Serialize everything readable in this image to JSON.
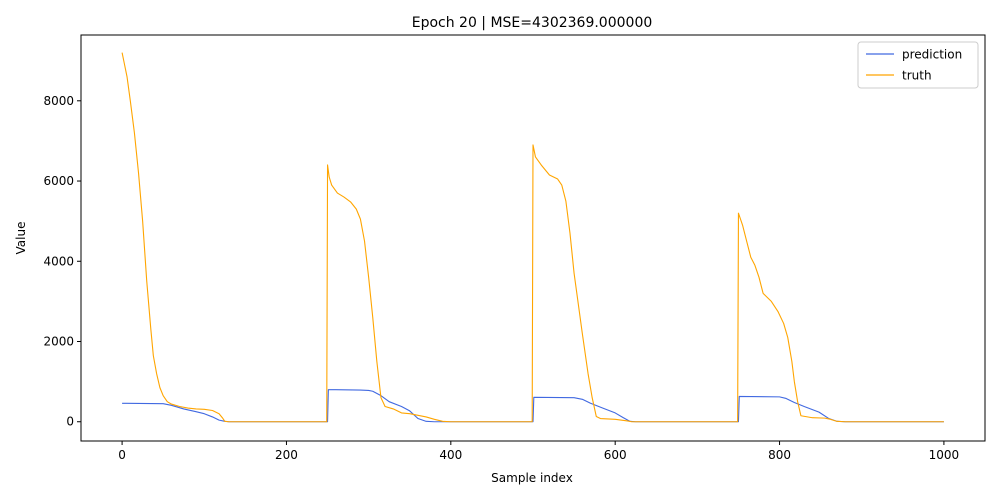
{
  "chart_data": {
    "type": "line",
    "title": "Epoch 20 | MSE=4302369.000000",
    "xlabel": "Sample index",
    "ylabel": "Value",
    "xlim": [
      -50,
      1050
    ],
    "ylim": [
      -480,
      9640
    ],
    "xticks": [
      0,
      200,
      400,
      600,
      800,
      1000
    ],
    "yticks": [
      0,
      2000,
      4000,
      6000,
      8000
    ],
    "grid": false,
    "legend_position": "upper-right",
    "series": [
      {
        "name": "prediction",
        "color": "#4169e1",
        "points": [
          [
            0,
            460
          ],
          [
            50,
            450
          ],
          [
            60,
            410
          ],
          [
            75,
            320
          ],
          [
            90,
            250
          ],
          [
            100,
            200
          ],
          [
            110,
            120
          ],
          [
            118,
            40
          ],
          [
            125,
            10
          ],
          [
            130,
            0
          ],
          [
            250,
            0
          ],
          [
            251,
            800
          ],
          [
            260,
            800
          ],
          [
            290,
            790
          ],
          [
            300,
            780
          ],
          [
            305,
            760
          ],
          [
            315,
            650
          ],
          [
            325,
            500
          ],
          [
            340,
            380
          ],
          [
            350,
            270
          ],
          [
            360,
            80
          ],
          [
            370,
            10
          ],
          [
            380,
            0
          ],
          [
            500,
            0
          ],
          [
            501,
            610
          ],
          [
            550,
            600
          ],
          [
            560,
            560
          ],
          [
            570,
            460
          ],
          [
            585,
            340
          ],
          [
            600,
            220
          ],
          [
            610,
            100
          ],
          [
            618,
            10
          ],
          [
            625,
            0
          ],
          [
            750,
            0
          ],
          [
            751,
            630
          ],
          [
            800,
            620
          ],
          [
            808,
            580
          ],
          [
            818,
            480
          ],
          [
            830,
            380
          ],
          [
            848,
            240
          ],
          [
            860,
            80
          ],
          [
            870,
            10
          ],
          [
            880,
            0
          ],
          [
            1000,
            0
          ]
        ]
      },
      {
        "name": "truth",
        "color": "#ffa500",
        "points": [
          [
            0,
            9200
          ],
          [
            3,
            8900
          ],
          [
            6,
            8600
          ],
          [
            10,
            8000
          ],
          [
            15,
            7200
          ],
          [
            20,
            6200
          ],
          [
            25,
            5000
          ],
          [
            30,
            3500
          ],
          [
            35,
            2300
          ],
          [
            38,
            1650
          ],
          [
            42,
            1200
          ],
          [
            46,
            850
          ],
          [
            50,
            650
          ],
          [
            55,
            500
          ],
          [
            60,
            440
          ],
          [
            70,
            380
          ],
          [
            80,
            340
          ],
          [
            90,
            320
          ],
          [
            100,
            310
          ],
          [
            110,
            280
          ],
          [
            118,
            200
          ],
          [
            122,
            100
          ],
          [
            125,
            10
          ],
          [
            130,
            0
          ],
          [
            249,
            0
          ],
          [
            250,
            6400
          ],
          [
            252,
            6100
          ],
          [
            255,
            5900
          ],
          [
            262,
            5700
          ],
          [
            270,
            5600
          ],
          [
            278,
            5480
          ],
          [
            285,
            5300
          ],
          [
            290,
            5050
          ],
          [
            295,
            4500
          ],
          [
            300,
            3600
          ],
          [
            305,
            2600
          ],
          [
            310,
            1500
          ],
          [
            315,
            600
          ],
          [
            320,
            380
          ],
          [
            330,
            320
          ],
          [
            340,
            220
          ],
          [
            350,
            200
          ],
          [
            360,
            160
          ],
          [
            370,
            120
          ],
          [
            380,
            60
          ],
          [
            390,
            10
          ],
          [
            400,
            0
          ],
          [
            499,
            0
          ],
          [
            500,
            6900
          ],
          [
            503,
            6600
          ],
          [
            510,
            6400
          ],
          [
            520,
            6150
          ],
          [
            530,
            6050
          ],
          [
            535,
            5900
          ],
          [
            540,
            5500
          ],
          [
            545,
            4700
          ],
          [
            550,
            3700
          ],
          [
            560,
            2200
          ],
          [
            567,
            1200
          ],
          [
            572,
            600
          ],
          [
            577,
            130
          ],
          [
            582,
            80
          ],
          [
            600,
            60
          ],
          [
            615,
            20
          ],
          [
            620,
            0
          ],
          [
            749,
            0
          ],
          [
            750,
            5200
          ],
          [
            755,
            4900
          ],
          [
            760,
            4500
          ],
          [
            765,
            4100
          ],
          [
            770,
            3900
          ],
          [
            775,
            3600
          ],
          [
            780,
            3200
          ],
          [
            790,
            3000
          ],
          [
            798,
            2750
          ],
          [
            805,
            2450
          ],
          [
            810,
            2100
          ],
          [
            815,
            1500
          ],
          [
            818,
            1000
          ],
          [
            822,
            500
          ],
          [
            826,
            150
          ],
          [
            840,
            100
          ],
          [
            855,
            90
          ],
          [
            862,
            60
          ],
          [
            870,
            10
          ],
          [
            880,
            0
          ],
          [
            1000,
            0
          ]
        ]
      }
    ]
  }
}
